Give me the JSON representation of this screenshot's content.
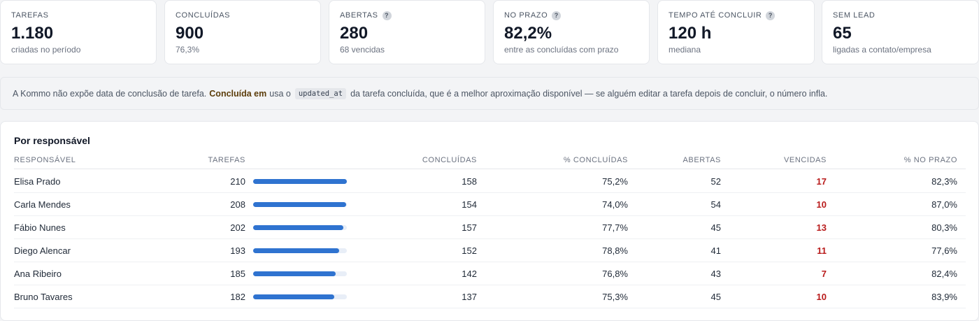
{
  "kpis": [
    {
      "label": "TAREFAS",
      "value": "1.180",
      "sub": "criadas no período",
      "help": false
    },
    {
      "label": "CONCLUÍDAS",
      "value": "900",
      "sub": "76,3%",
      "help": false
    },
    {
      "label": "ABERTAS",
      "value": "280",
      "sub": "68 vencidas",
      "help": true
    },
    {
      "label": "NO PRAZO",
      "value": "82,2%",
      "sub": "entre as concluídas com prazo",
      "help": true
    },
    {
      "label": "TEMPO ATÉ CONCLUIR",
      "value": "120 h",
      "sub": "mediana",
      "help": true
    },
    {
      "label": "SEM LEAD",
      "value": "65",
      "sub": "ligadas a contato/empresa",
      "help": false
    }
  ],
  "help_glyph": "?",
  "note": {
    "prefix": "A Kommo não expõe data de conclusão de tarefa.",
    "strong": "Concluída em",
    "middle": "usa o",
    "code": "updated_at",
    "suffix": "da tarefa concluída, que é a melhor aproximação disponível — se alguém editar a tarefa depois de concluir, o número infla."
  },
  "table": {
    "title": "Por responsável",
    "headers": {
      "owner": "RESPONSÁVEL",
      "tasks": "TAREFAS",
      "done": "CONCLUÍDAS",
      "pct_done": "% CONCLUÍDAS",
      "open": "ABERTAS",
      "overdue": "VENCIDAS",
      "pct_on_time": "% NO PRAZO"
    },
    "bar_max_tasks": 210,
    "rows": [
      {
        "owner": "Elisa Prado",
        "tasks": "210",
        "tasks_value": 210,
        "done": "158",
        "pct_done": "75,2%",
        "open": "52",
        "overdue": "17",
        "pct_on_time": "82,3%"
      },
      {
        "owner": "Carla Mendes",
        "tasks": "208",
        "tasks_value": 208,
        "done": "154",
        "pct_done": "74,0%",
        "open": "54",
        "overdue": "10",
        "pct_on_time": "87,0%"
      },
      {
        "owner": "Fábio Nunes",
        "tasks": "202",
        "tasks_value": 202,
        "done": "157",
        "pct_done": "77,7%",
        "open": "45",
        "overdue": "13",
        "pct_on_time": "80,3%"
      },
      {
        "owner": "Diego Alencar",
        "tasks": "193",
        "tasks_value": 193,
        "done": "152",
        "pct_done": "78,8%",
        "open": "41",
        "overdue": "11",
        "pct_on_time": "77,6%"
      },
      {
        "owner": "Ana Ribeiro",
        "tasks": "185",
        "tasks_value": 185,
        "done": "142",
        "pct_done": "76,8%",
        "open": "43",
        "overdue": "7",
        "pct_on_time": "82,4%"
      },
      {
        "owner": "Bruno Tavares",
        "tasks": "182",
        "tasks_value": 182,
        "done": "137",
        "pct_done": "75,3%",
        "open": "45",
        "overdue": "10",
        "pct_on_time": "83,9%"
      }
    ]
  },
  "colors": {
    "accent_bar": "#2f73d0",
    "overdue": "#b91c1c",
    "note_highlight": "#5c3d0a"
  }
}
